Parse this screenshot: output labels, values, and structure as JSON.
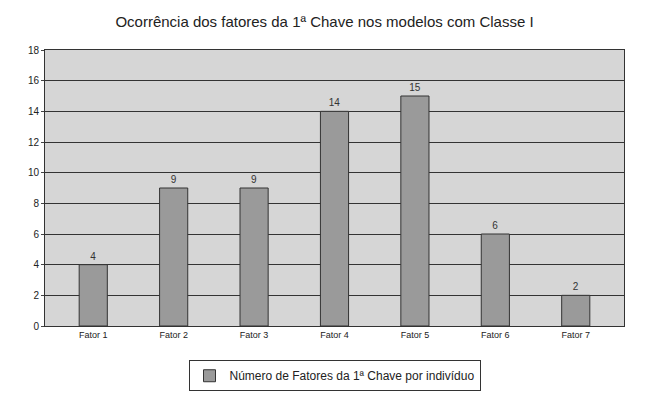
{
  "chart_data": {
    "type": "bar",
    "title": "Ocorrência dos fatores da 1ª Chave nos modelos com Classe I",
    "categories": [
      "Fator 1",
      "Fator 2",
      "Fator 3",
      "Fator 4",
      "Fator 5",
      "Fator 6",
      "Fator 7"
    ],
    "series": [
      {
        "name": "Número de Fatores da 1ª Chave por indivíduo",
        "color": "#9a9a9a",
        "values": [
          4,
          9,
          9,
          14,
          15,
          6,
          2
        ]
      }
    ],
    "ylim": [
      0,
      18
    ],
    "yticks": [
      0,
      2,
      4,
      6,
      8,
      10,
      12,
      14,
      16,
      18
    ],
    "grid": true,
    "data_labels": true,
    "legend": "bottom"
  }
}
